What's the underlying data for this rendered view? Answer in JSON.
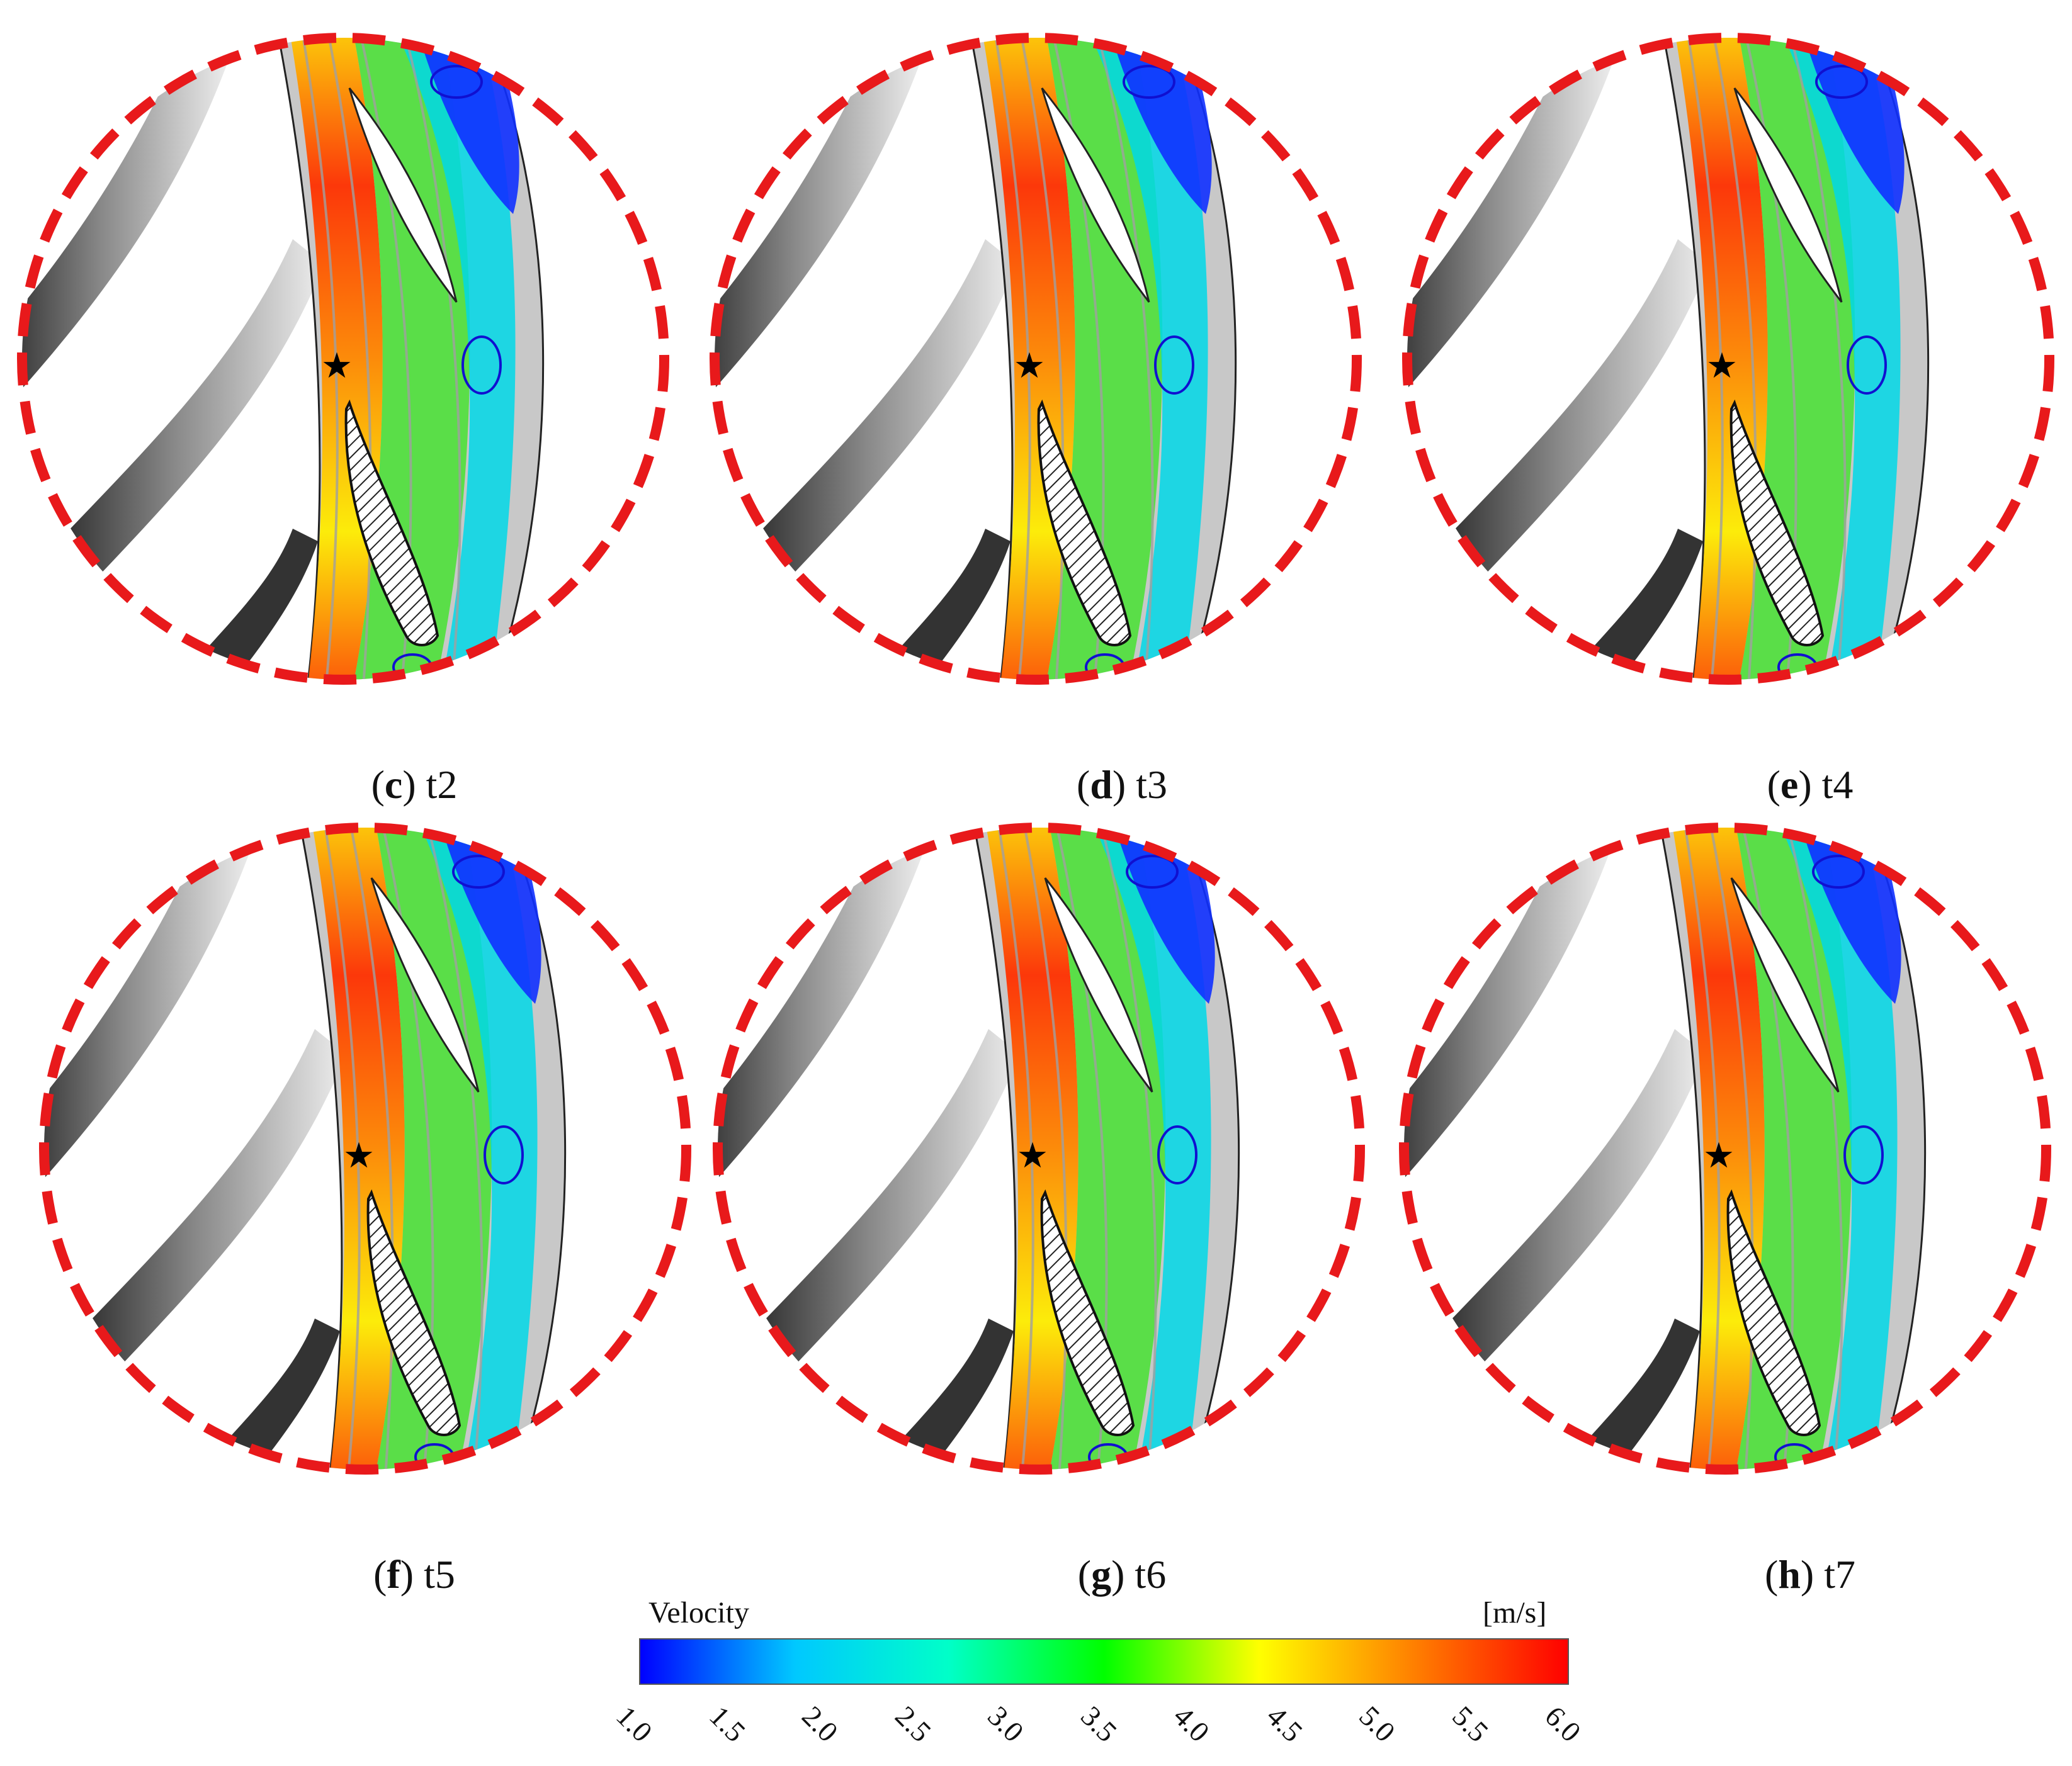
{
  "panels": [
    {
      "id": "c",
      "letter": "c",
      "label": "t2"
    },
    {
      "id": "d",
      "letter": "d",
      "label": "t3"
    },
    {
      "id": "e",
      "letter": "e",
      "label": "t4"
    },
    {
      "id": "f",
      "letter": "f",
      "label": "t5"
    },
    {
      "id": "g",
      "letter": "g",
      "label": "t6"
    },
    {
      "id": "h",
      "letter": "h",
      "label": "t7"
    }
  ],
  "colorbar": {
    "title": "Velocity",
    "unit": "[m/s]",
    "ticks": [
      "1.0",
      "1.5",
      "2.0",
      "2.5",
      "3.0",
      "3.5",
      "4.0",
      "4.5",
      "5.0",
      "5.5",
      "6.0"
    ],
    "colors": [
      "#0000ff",
      "#00c8ff",
      "#00ffc8",
      "#00ff00",
      "#ffff00",
      "#ff8000",
      "#ff0000"
    ]
  },
  "colors": {
    "dashed_circle": "#e8191b",
    "shade_dark": "#1a1a1a",
    "shade_mid": "#7a7a7a",
    "passage_grey": "#c8c8c8"
  }
}
